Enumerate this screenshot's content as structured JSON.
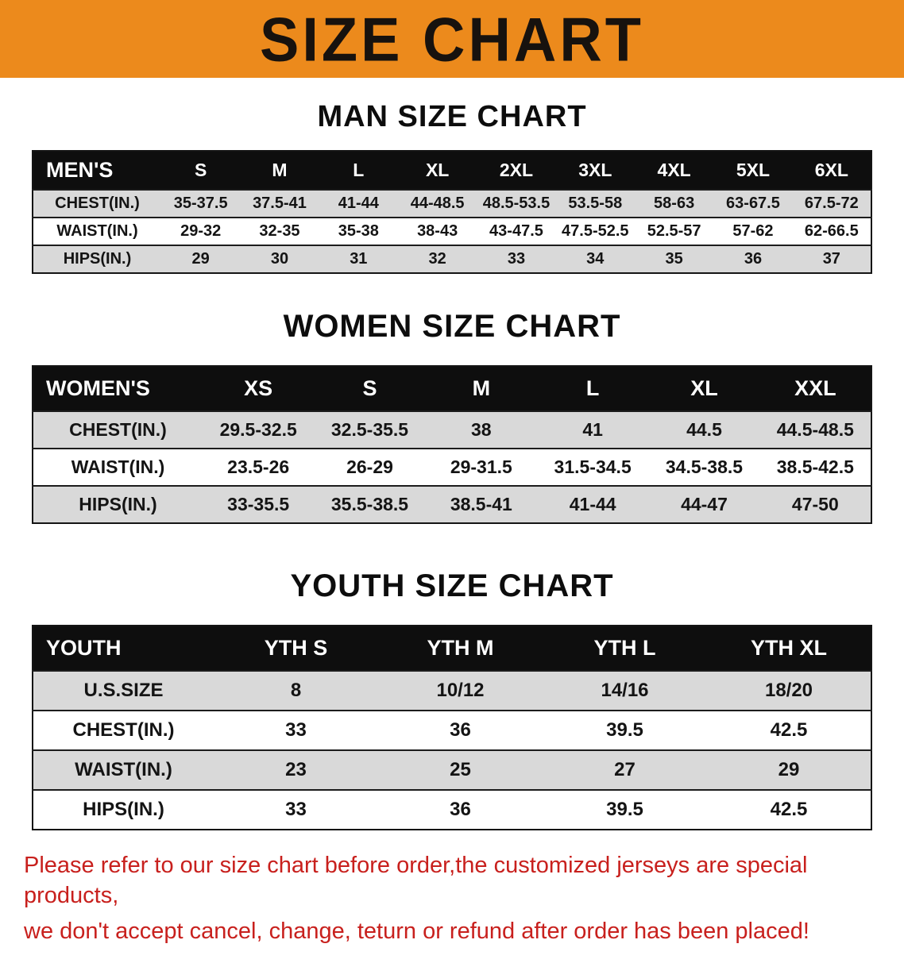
{
  "banner": {
    "title": "SIZE CHART"
  },
  "colors": {
    "banner_bg": "#ec8a1c",
    "table_header_bg": "#0e0e0e",
    "row_stripe_bg": "#d9d9d9",
    "note_text": "#c8201d"
  },
  "men": {
    "heading": "MAN SIZE CHART",
    "table": {
      "header": [
        "MEN'S",
        "S",
        "M",
        "L",
        "XL",
        "2XL",
        "3XL",
        "4XL",
        "5XL",
        "6XL"
      ],
      "rows": [
        [
          "CHEST(IN.)",
          "35-37.5",
          "37.5-41",
          "41-44",
          "44-48.5",
          "48.5-53.5",
          "53.5-58",
          "58-63",
          "63-67.5",
          "67.5-72"
        ],
        [
          "WAIST(IN.)",
          "29-32",
          "32-35",
          "35-38",
          "38-43",
          "43-47.5",
          "47.5-52.5",
          "52.5-57",
          "57-62",
          "62-66.5"
        ],
        [
          "HIPS(IN.)",
          "29",
          "30",
          "31",
          "32",
          "33",
          "34",
          "35",
          "36",
          "37"
        ]
      ]
    }
  },
  "women": {
    "heading": "WOMEN SIZE CHART",
    "table": {
      "header": [
        "WOMEN'S",
        "XS",
        "S",
        "M",
        "L",
        "XL",
        "XXL"
      ],
      "rows": [
        [
          "CHEST(IN.)",
          "29.5-32.5",
          "32.5-35.5",
          "38",
          "41",
          "44.5",
          "44.5-48.5"
        ],
        [
          "WAIST(IN.)",
          "23.5-26",
          "26-29",
          "29-31.5",
          "31.5-34.5",
          "34.5-38.5",
          "38.5-42.5"
        ],
        [
          "HIPS(IN.)",
          "33-35.5",
          "35.5-38.5",
          "38.5-41",
          "41-44",
          "44-47",
          "47-50"
        ]
      ]
    }
  },
  "youth": {
    "heading": "YOUTH SIZE CHART",
    "table": {
      "header": [
        "YOUTH",
        "YTH S",
        "YTH M",
        "YTH L",
        "YTH XL"
      ],
      "rows": [
        [
          "U.S.SIZE",
          "8",
          "10/12",
          "14/16",
          "18/20"
        ],
        [
          "CHEST(IN.)",
          "33",
          "36",
          "39.5",
          "42.5"
        ],
        [
          "WAIST(IN.)",
          "23",
          "25",
          "27",
          "29"
        ],
        [
          "HIPS(IN.)",
          "33",
          "36",
          "39.5",
          "42.5"
        ]
      ]
    }
  },
  "note": {
    "line1": "Please refer to our size chart before order,the customized jerseys are special products,",
    "line2": "we don't accept cancel, change, teturn or refund after order has been placed!"
  }
}
